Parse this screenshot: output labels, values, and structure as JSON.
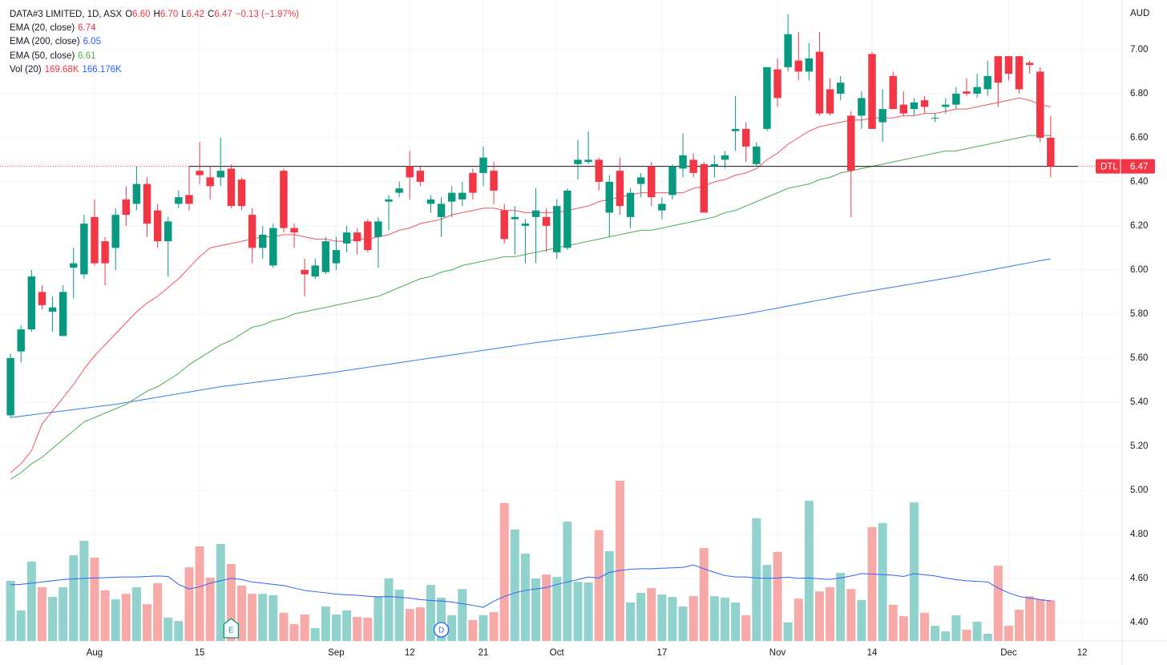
{
  "chart_data": {
    "type": "candlestick",
    "legend": {
      "title": "DATA#3 LIMITED, 1D, ASX",
      "ohlc": [
        [
          "O",
          "6.60"
        ],
        [
          "H",
          "6.70"
        ],
        [
          "L",
          "6.42"
        ],
        [
          "C",
          "6.47"
        ]
      ],
      "change": "−0.13 (−1.97%)",
      "indicators": [
        {
          "name": "EMA (20, close)",
          "values": [
            "6.74"
          ],
          "colors": [
            "#f23645"
          ]
        },
        {
          "name": "EMA (200, close)",
          "values": [
            "6.05"
          ],
          "colors": [
            "#2962ff"
          ]
        },
        {
          "name": "EMA (50, close)",
          "values": [
            "6.61"
          ],
          "colors": [
            "#4caf50"
          ]
        },
        {
          "name": "Vol (20)",
          "values": [
            "169.68K",
            "166.176K"
          ],
          "colors": [
            "#f23645",
            "#2962ff"
          ]
        }
      ]
    },
    "currency": "AUD",
    "price_tag": {
      "symbol": "DTL",
      "label": "6.47",
      "value": 6.47,
      "color": "#f23645"
    },
    "hline": {
      "value": 6.47,
      "start_index": 17
    },
    "up_color": "#089981",
    "down_color": "#f23645",
    "volume_up_color": "#92d2cc",
    "volume_down_color": "#f7a9a7",
    "xlim": [
      -1,
      105.8
    ],
    "ylim": [
      4.316,
      7.225
    ],
    "y3lim": [
      0,
      2664
    ],
    "grid": true,
    "xticks": [
      {
        "value": 8,
        "label": "Aug"
      },
      {
        "value": 18,
        "label": "15"
      },
      {
        "value": 31,
        "label": "Sep"
      },
      {
        "value": 38,
        "label": "12"
      },
      {
        "value": 45,
        "label": "21"
      },
      {
        "value": 52,
        "label": "Oct"
      },
      {
        "value": 62,
        "label": "17"
      },
      {
        "value": 73,
        "label": "Nov"
      },
      {
        "value": 82,
        "label": "14"
      },
      {
        "value": 95,
        "label": "Dec"
      },
      {
        "value": 102,
        "label": "12"
      }
    ],
    "yticks": [
      {
        "value": 4.4,
        "label": "4.40"
      },
      {
        "value": 4.6,
        "label": "4.60"
      },
      {
        "value": 4.8,
        "label": "4.80"
      },
      {
        "value": 5,
        "label": "5.00"
      },
      {
        "value": 5.2,
        "label": "5.20"
      },
      {
        "value": 5.4,
        "label": "5.40"
      },
      {
        "value": 5.6,
        "label": "5.60"
      },
      {
        "value": 5.8,
        "label": "5.80"
      },
      {
        "value": 6,
        "label": "6.00"
      },
      {
        "value": 6.2,
        "label": "6.20"
      },
      {
        "value": 6.4,
        "label": "6.40"
      },
      {
        "value": 6.6,
        "label": "6.60"
      },
      {
        "value": 6.8,
        "label": "6.80"
      },
      {
        "value": 7,
        "label": "7.00"
      }
    ],
    "events": [
      {
        "index": 21,
        "label": "E",
        "color": "#089981"
      },
      {
        "index": 41,
        "label": "D",
        "color": "#2962ff"
      }
    ],
    "candles": [
      [
        5.34,
        5.62,
        5.33,
        5.6
      ],
      [
        5.63,
        5.75,
        5.58,
        5.73
      ],
      [
        5.73,
        6.0,
        5.72,
        5.97
      ],
      [
        5.9,
        5.93,
        5.82,
        5.84
      ],
      [
        5.81,
        5.88,
        5.72,
        5.83
      ],
      [
        5.7,
        5.93,
        5.7,
        5.9
      ],
      [
        6.01,
        6.1,
        5.87,
        6.03
      ],
      [
        5.98,
        6.25,
        5.96,
        6.21
      ],
      [
        6.24,
        6.32,
        6.02,
        6.03
      ],
      [
        6.13,
        6.15,
        5.93,
        6.03
      ],
      [
        6.1,
        6.28,
        6.0,
        6.25
      ],
      [
        6.32,
        6.38,
        6.2,
        6.25
      ],
      [
        6.3,
        6.47,
        6.27,
        6.39
      ],
      [
        6.39,
        6.42,
        6.15,
        6.21
      ],
      [
        6.27,
        6.3,
        6.1,
        6.13
      ],
      [
        6.13,
        6.24,
        5.97,
        6.22
      ],
      [
        6.3,
        6.36,
        6.28,
        6.33
      ],
      [
        6.34,
        6.47,
        6.27,
        6.3
      ],
      [
        6.45,
        6.58,
        6.39,
        6.43
      ],
      [
        6.42,
        6.47,
        6.32,
        6.38
      ],
      [
        6.42,
        6.6,
        6.38,
        6.45
      ],
      [
        6.46,
        6.48,
        6.28,
        6.29
      ],
      [
        6.41,
        6.42,
        6.27,
        6.29
      ],
      [
        6.25,
        6.28,
        6.03,
        6.1
      ],
      [
        6.1,
        6.2,
        6.05,
        6.16
      ],
      [
        6.02,
        6.21,
        6.01,
        6.19
      ],
      [
        6.45,
        6.46,
        6.17,
        6.19
      ],
      [
        6.19,
        6.21,
        6.1,
        6.17
      ],
      [
        6.0,
        6.05,
        5.88,
        5.98
      ],
      [
        5.97,
        6.05,
        5.96,
        6.02
      ],
      [
        5.99,
        6.15,
        5.98,
        6.13
      ],
      [
        6.03,
        6.15,
        6.0,
        6.09
      ],
      [
        6.12,
        6.2,
        6.08,
        6.17
      ],
      [
        6.17,
        6.19,
        6.07,
        6.13
      ],
      [
        6.22,
        6.23,
        6.08,
        6.09
      ],
      [
        6.15,
        6.24,
        6.01,
        6.22
      ],
      [
        6.31,
        6.34,
        6.18,
        6.32
      ],
      [
        6.35,
        6.4,
        6.33,
        6.37
      ],
      [
        6.47,
        6.54,
        6.32,
        6.42
      ],
      [
        6.45,
        6.47,
        6.38,
        6.4
      ],
      [
        6.3,
        6.34,
        6.26,
        6.32
      ],
      [
        6.24,
        6.33,
        6.15,
        6.3
      ],
      [
        6.31,
        6.38,
        6.24,
        6.35
      ],
      [
        6.32,
        6.4,
        6.29,
        6.35
      ],
      [
        6.44,
        6.46,
        6.32,
        6.35
      ],
      [
        6.44,
        6.56,
        6.38,
        6.51
      ],
      [
        6.45,
        6.49,
        6.3,
        6.36
      ],
      [
        6.27,
        6.3,
        6.12,
        6.14
      ],
      [
        6.23,
        6.29,
        6.07,
        6.24
      ],
      [
        6.2,
        6.23,
        6.03,
        6.21
      ],
      [
        6.24,
        6.37,
        6.03,
        6.27
      ],
      [
        6.24,
        6.28,
        6.08,
        6.2
      ],
      [
        6.08,
        6.32,
        6.05,
        6.29
      ],
      [
        6.1,
        6.37,
        6.09,
        6.36
      ],
      [
        6.48,
        6.59,
        6.41,
        6.5
      ],
      [
        6.49,
        6.63,
        6.48,
        6.5
      ],
      [
        6.5,
        6.51,
        6.36,
        6.4
      ],
      [
        6.26,
        6.43,
        6.15,
        6.4
      ],
      [
        6.45,
        6.51,
        6.25,
        6.29
      ],
      [
        6.24,
        6.37,
        6.19,
        6.35
      ],
      [
        6.39,
        6.44,
        6.33,
        6.42
      ],
      [
        6.47,
        6.49,
        6.29,
        6.33
      ],
      [
        6.27,
        6.33,
        6.23,
        6.3
      ],
      [
        6.34,
        6.48,
        6.32,
        6.47
      ],
      [
        6.46,
        6.62,
        6.42,
        6.52
      ],
      [
        6.5,
        6.53,
        6.42,
        6.44
      ],
      [
        6.48,
        6.49,
        6.26,
        6.26
      ],
      [
        6.47,
        6.52,
        6.42,
        6.48
      ],
      [
        6.5,
        6.54,
        6.46,
        6.52
      ],
      [
        6.63,
        6.79,
        6.54,
        6.64
      ],
      [
        6.64,
        6.67,
        6.49,
        6.56
      ],
      [
        6.48,
        6.58,
        6.47,
        6.56
      ],
      [
        6.64,
        6.92,
        6.63,
        6.92
      ],
      [
        6.91,
        6.96,
        6.74,
        6.78
      ],
      [
        6.92,
        7.16,
        6.9,
        7.07
      ],
      [
        6.95,
        7.08,
        6.86,
        6.9
      ],
      [
        6.9,
        7.03,
        6.86,
        6.96
      ],
      [
        6.99,
        7.08,
        6.7,
        6.71
      ],
      [
        6.82,
        6.87,
        6.7,
        6.71
      ],
      [
        6.8,
        6.88,
        6.77,
        6.85
      ],
      [
        6.7,
        6.72,
        6.24,
        6.45
      ],
      [
        6.7,
        6.81,
        6.64,
        6.78
      ],
      [
        6.98,
        6.99,
        6.64,
        6.64
      ],
      [
        6.67,
        6.82,
        6.58,
        6.73
      ],
      [
        6.88,
        6.9,
        6.73,
        6.73
      ],
      [
        6.75,
        6.81,
        6.7,
        6.71
      ],
      [
        6.73,
        6.78,
        6.7,
        6.76
      ],
      [
        6.77,
        6.79,
        6.71,
        6.74
      ],
      [
        6.69,
        6.71,
        6.67,
        6.69
      ],
      [
        6.74,
        6.78,
        6.71,
        6.75
      ],
      [
        6.75,
        6.83,
        6.73,
        6.8
      ],
      [
        6.81,
        6.87,
        6.79,
        6.8
      ],
      [
        6.8,
        6.89,
        6.78,
        6.83
      ],
      [
        6.82,
        6.95,
        6.79,
        6.88
      ],
      [
        6.97,
        6.97,
        6.74,
        6.85
      ],
      [
        6.97,
        6.97,
        6.86,
        6.89
      ],
      [
        6.97,
        6.97,
        6.8,
        6.82
      ],
      [
        6.94,
        6.95,
        6.89,
        6.93
      ],
      [
        6.9,
        6.92,
        6.58,
        6.6
      ],
      [
        6.6,
        6.7,
        6.42,
        6.47
      ]
    ],
    "volume": [
      250,
      127,
      330,
      223,
      183,
      223,
      356,
      416,
      346,
      210,
      173,
      196,
      223,
      153,
      240,
      97,
      83,
      306,
      393,
      263,
      403,
      320,
      230,
      196,
      196,
      190,
      117,
      70,
      110,
      53,
      143,
      110,
      127,
      100,
      97,
      186,
      260,
      213,
      133,
      140,
      233,
      180,
      107,
      216,
      87,
      107,
      120,
      573,
      463,
      363,
      260,
      276,
      266,
      496,
      246,
      243,
      460,
      373,
      666,
      160,
      200,
      220,
      193,
      183,
      143,
      186,
      386,
      186,
      180,
      160,
      107,
      510,
      316,
      370,
      77,
      176,
      583,
      206,
      223,
      283,
      216,
      170,
      473,
      490,
      150,
      103,
      576,
      117,
      63,
      40,
      107,
      47,
      80,
      30,
      313,
      63,
      130,
      186,
      173,
      169.68
    ],
    "series": [
      {
        "name": "EMA (20, close)",
        "color": "#f7525f",
        "values": [
          5.08,
          5.12,
          5.18,
          5.3,
          5.36,
          5.42,
          5.48,
          5.55,
          5.61,
          5.66,
          5.71,
          5.76,
          5.81,
          5.85,
          5.88,
          5.92,
          5.96,
          6.01,
          6.06,
          6.1,
          6.11,
          6.12,
          6.13,
          6.14,
          6.15,
          6.15,
          6.16,
          6.16,
          6.15,
          6.14,
          6.14,
          6.13,
          6.13,
          6.14,
          6.14,
          6.15,
          6.16,
          6.18,
          6.19,
          6.21,
          6.22,
          6.23,
          6.25,
          6.26,
          6.27,
          6.28,
          6.28,
          6.27,
          6.27,
          6.26,
          6.26,
          6.26,
          6.26,
          6.27,
          6.28,
          6.29,
          6.31,
          6.32,
          6.33,
          6.34,
          6.35,
          6.35,
          6.35,
          6.35,
          6.35,
          6.37,
          6.38,
          6.4,
          6.41,
          6.43,
          6.44,
          6.46,
          6.5,
          6.53,
          6.57,
          6.6,
          6.63,
          6.65,
          6.66,
          6.67,
          6.68,
          6.68,
          6.69,
          6.69,
          6.69,
          6.7,
          6.7,
          6.71,
          6.71,
          6.72,
          6.73,
          6.73,
          6.74,
          6.75,
          6.76,
          6.77,
          6.78,
          6.77,
          6.75,
          6.74
        ]
      },
      {
        "name": "EMA (200, close)",
        "color": "#3179f5",
        "values": [
          5.33,
          5.336,
          5.342,
          5.348,
          5.354,
          5.36,
          5.366,
          5.372,
          5.378,
          5.384,
          5.39,
          5.398,
          5.406,
          5.414,
          5.422,
          5.43,
          5.438,
          5.446,
          5.454,
          5.462,
          5.47,
          5.476,
          5.482,
          5.488,
          5.494,
          5.5,
          5.506,
          5.512,
          5.518,
          5.524,
          5.53,
          5.537,
          5.544,
          5.551,
          5.558,
          5.565,
          5.572,
          5.579,
          5.586,
          5.593,
          5.6,
          5.607,
          5.614,
          5.621,
          5.628,
          5.635,
          5.642,
          5.649,
          5.656,
          5.663,
          5.67,
          5.676,
          5.682,
          5.688,
          5.694,
          5.7,
          5.706,
          5.712,
          5.718,
          5.724,
          5.73,
          5.737,
          5.744,
          5.751,
          5.758,
          5.765,
          5.772,
          5.779,
          5.786,
          5.793,
          5.8,
          5.809,
          5.818,
          5.827,
          5.836,
          5.845,
          5.854,
          5.863,
          5.872,
          5.881,
          5.89,
          5.898,
          5.906,
          5.914,
          5.922,
          5.93,
          5.938,
          5.946,
          5.954,
          5.962,
          5.97,
          5.979,
          5.988,
          5.997,
          6.006,
          6.015,
          6.024,
          6.033,
          6.042,
          6.05
        ]
      },
      {
        "name": "EMA (50, close)",
        "color": "#4caf50",
        "values": [
          5.05,
          5.08,
          5.12,
          5.15,
          5.19,
          5.23,
          5.27,
          5.31,
          5.33,
          5.35,
          5.37,
          5.39,
          5.42,
          5.45,
          5.47,
          5.5,
          5.53,
          5.57,
          5.6,
          5.63,
          5.66,
          5.68,
          5.71,
          5.74,
          5.75,
          5.77,
          5.78,
          5.8,
          5.81,
          5.82,
          5.83,
          5.84,
          5.85,
          5.86,
          5.87,
          5.88,
          5.9,
          5.92,
          5.94,
          5.96,
          5.97,
          5.99,
          6.0,
          6.02,
          6.03,
          6.04,
          6.05,
          6.06,
          6.06,
          6.07,
          6.08,
          6.09,
          6.1,
          6.11,
          6.12,
          6.13,
          6.14,
          6.15,
          6.16,
          6.17,
          6.18,
          6.18,
          6.19,
          6.2,
          6.21,
          6.22,
          6.23,
          6.24,
          6.26,
          6.27,
          6.29,
          6.31,
          6.33,
          6.35,
          6.37,
          6.38,
          6.39,
          6.41,
          6.42,
          6.44,
          6.45,
          6.46,
          6.47,
          6.48,
          6.49,
          6.5,
          6.51,
          6.52,
          6.53,
          6.54,
          6.54,
          6.55,
          6.56,
          6.57,
          6.58,
          6.59,
          6.6,
          6.61,
          6.61,
          6.61
        ]
      },
      {
        "name": "Vol (20)",
        "color": "#2962ff",
        "axis": "y3",
        "values": [
          233,
          235,
          240,
          245,
          250,
          255,
          258,
          260,
          262,
          263,
          265,
          266,
          266,
          268,
          270,
          268,
          235,
          216,
          225,
          240,
          250,
          260,
          255,
          245,
          240,
          235,
          230,
          220,
          210,
          205,
          200,
          195,
          192,
          190,
          186,
          183,
          185,
          182,
          178,
          172,
          168,
          166,
          162,
          155,
          148,
          140,
          165,
          185,
          200,
          210,
          216,
          222,
          235,
          245,
          255,
          266,
          262,
          285,
          293,
          298,
          300,
          300,
          302,
          304,
          306,
          316,
          300,
          285,
          272,
          266,
          266,
          262,
          260,
          262,
          265,
          260,
          262,
          258,
          256,
          262,
          270,
          280,
          278,
          276,
          273,
          268,
          280,
          275,
          270,
          262,
          255,
          250,
          248,
          245,
          220,
          200,
          185,
          178,
          172,
          166.176
        ]
      }
    ]
  }
}
